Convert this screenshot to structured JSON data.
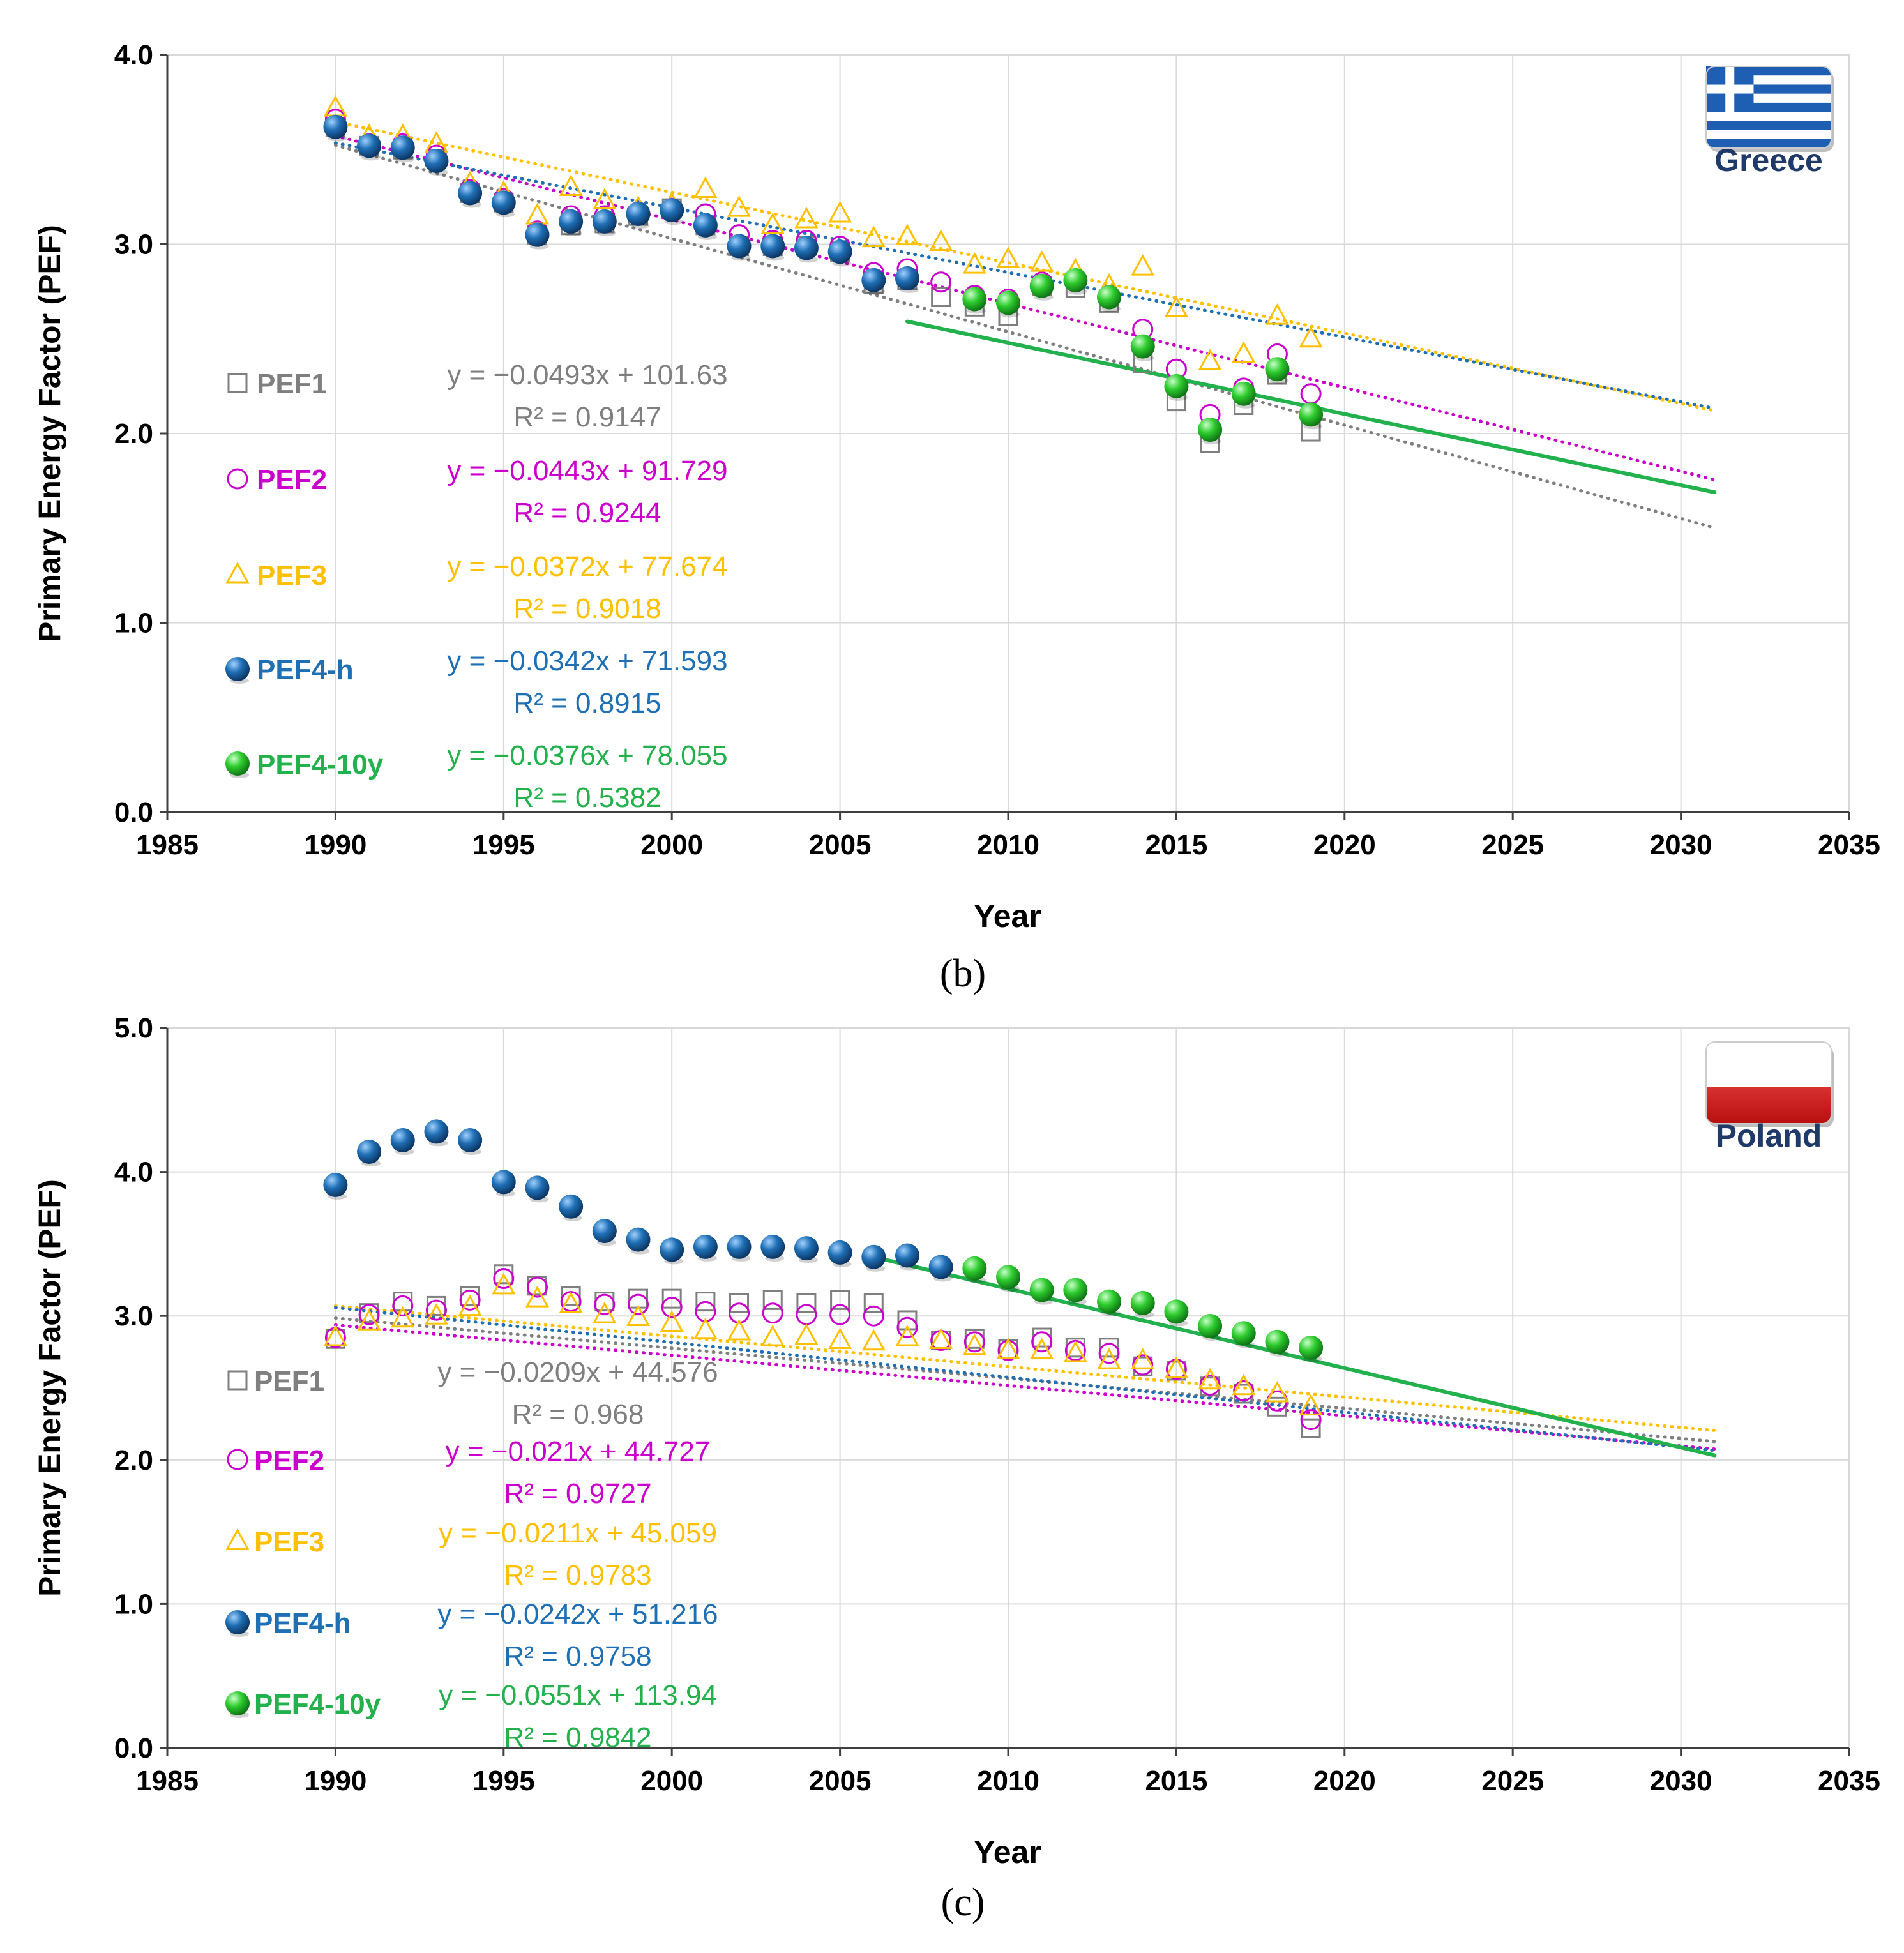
{
  "chart_data": [
    {
      "type": "scatter",
      "panel_caption": "(b)",
      "country": "Greece",
      "xlabel": "Year",
      "ylabel": "Primary Energy Factor (PEF)",
      "xlim": [
        1985,
        2035
      ],
      "ylim": [
        0,
        4
      ],
      "xticks": [
        "1985",
        "1990",
        "1995",
        "2000",
        "2005",
        "2010",
        "2015",
        "2020",
        "2025",
        "2030",
        "2035"
      ],
      "yticks": [
        "0.0",
        "1.0",
        "2.0",
        "3.0",
        "4.0"
      ],
      "series": [
        {
          "name": "PEF1",
          "marker": "square",
          "color": "#7f7f7f",
          "x": [
            1990,
            1991,
            1992,
            1993,
            1994,
            1995,
            1996,
            1997,
            1998,
            1999,
            2000,
            2001,
            2002,
            2003,
            2004,
            2005,
            2006,
            2007,
            2008,
            2009,
            2010,
            2011,
            2012,
            2013,
            2014,
            2015,
            2016,
            2017,
            2018,
            2019
          ],
          "values": [
            3.62,
            3.52,
            3.5,
            3.45,
            3.27,
            3.22,
            3.05,
            3.1,
            3.11,
            3.15,
            3.19,
            3.1,
            2.99,
            2.99,
            2.99,
            2.96,
            2.79,
            2.81,
            2.72,
            2.67,
            2.62,
            2.78,
            2.77,
            2.69,
            2.37,
            2.17,
            1.95,
            2.15,
            2.31,
            2.01
          ],
          "equation": "y = −0.0493x + 101.63",
          "r2": "R² = 0.9147",
          "slope": -0.0493,
          "intercept": 101.63
        },
        {
          "name": "PEF2",
          "marker": "circle",
          "color": "#cc00cc",
          "x": [
            1990,
            1991,
            1992,
            1993,
            1994,
            1995,
            1996,
            1997,
            1998,
            1999,
            2000,
            2001,
            2002,
            2003,
            2004,
            2005,
            2006,
            2007,
            2008,
            2009,
            2010,
            2011,
            2012,
            2013,
            2014,
            2015,
            2016,
            2017,
            2018,
            2019
          ],
          "values": [
            3.66,
            3.53,
            3.53,
            3.47,
            3.29,
            3.24,
            3.07,
            3.15,
            3.15,
            3.17,
            3.19,
            3.16,
            3.05,
            3.02,
            3.02,
            2.99,
            2.85,
            2.87,
            2.8,
            2.73,
            2.71,
            2.8,
            2.8,
            2.73,
            2.55,
            2.34,
            2.1,
            2.24,
            2.42,
            2.21
          ],
          "equation": "y = −0.0443x + 91.729",
          "r2": "R² = 0.9244",
          "slope": -0.0443,
          "intercept": 91.729
        },
        {
          "name": "PEF3",
          "marker": "triangle",
          "color": "#ffc000",
          "x": [
            1990,
            1991,
            1992,
            1993,
            1994,
            1995,
            1996,
            1997,
            1998,
            1999,
            2000,
            2001,
            2002,
            2003,
            2004,
            2005,
            2006,
            2007,
            2008,
            2009,
            2010,
            2011,
            2012,
            2013,
            2014,
            2015,
            2016,
            2017,
            2018,
            2019
          ],
          "values": [
            3.72,
            3.57,
            3.57,
            3.53,
            3.32,
            3.27,
            3.15,
            3.3,
            3.23,
            3.19,
            3.21,
            3.29,
            3.19,
            3.1,
            3.13,
            3.16,
            3.03,
            3.04,
            3.01,
            2.89,
            2.92,
            2.9,
            2.86,
            2.78,
            2.88,
            2.66,
            2.38,
            2.42,
            2.62,
            2.5
          ],
          "equation": "y = −0.0372x + 77.674",
          "r2": "R² = 0.9018",
          "slope": -0.0372,
          "intercept": 77.674
        },
        {
          "name": "PEF4-h",
          "marker": "ball",
          "color": "#1f6fb5",
          "x": [
            1990,
            1991,
            1992,
            1993,
            1994,
            1995,
            1996,
            1997,
            1998,
            1999,
            2000,
            2001,
            2002,
            2003,
            2004,
            2005,
            2006,
            2007
          ],
          "values": [
            3.62,
            3.52,
            3.51,
            3.44,
            3.27,
            3.22,
            3.05,
            3.12,
            3.12,
            3.16,
            3.18,
            3.1,
            2.99,
            2.99,
            2.98,
            2.96,
            2.81,
            2.82
          ],
          "equation": "y = −0.0342x + 71.593",
          "r2": "R² = 0.8915",
          "slope": -0.0342,
          "intercept": 71.593
        },
        {
          "name": "PEF4-10y",
          "marker": "ball",
          "color": "#22b14c",
          "x": [
            2009,
            2010,
            2011,
            2012,
            2013,
            2014,
            2015,
            2016,
            2017,
            2018,
            2019
          ],
          "values": [
            2.71,
            2.69,
            2.78,
            2.81,
            2.72,
            2.46,
            2.25,
            2.02,
            2.21,
            2.34,
            2.1
          ],
          "equation": "y = −0.0376x + 78.055",
          "r2": "R² = 0.5382",
          "slope": -0.0376,
          "intercept": 78.055,
          "fit_range": [
            2007,
            2031
          ]
        }
      ]
    },
    {
      "type": "scatter",
      "panel_caption": "(c)",
      "country": "Poland",
      "xlabel": "Year",
      "ylabel": "Primary Energy Factor (PEF)",
      "xlim": [
        1985,
        2035
      ],
      "ylim": [
        0,
        5
      ],
      "xticks": [
        "1985",
        "1990",
        "1995",
        "2000",
        "2005",
        "2010",
        "2015",
        "2020",
        "2025",
        "2030",
        "2035"
      ],
      "yticks": [
        "0.0",
        "1.0",
        "2.0",
        "3.0",
        "4.0",
        "5.0"
      ],
      "series": [
        {
          "name": "PEF1",
          "marker": "square",
          "color": "#7f7f7f",
          "x": [
            1990,
            1991,
            1992,
            1993,
            1994,
            1995,
            1996,
            1997,
            1998,
            1999,
            2000,
            2001,
            2002,
            2003,
            2004,
            2005,
            2006,
            2007,
            2008,
            2009,
            2010,
            2011,
            2012,
            2013,
            2014,
            2015,
            2016,
            2017,
            2018,
            2019
          ],
          "values": [
            2.84,
            3.02,
            3.1,
            3.07,
            3.14,
            3.29,
            3.21,
            3.14,
            3.1,
            3.12,
            3.12,
            3.1,
            3.09,
            3.11,
            3.09,
            3.11,
            3.09,
            2.97,
            2.83,
            2.84,
            2.77,
            2.85,
            2.78,
            2.78,
            2.65,
            2.62,
            2.51,
            2.46,
            2.37,
            2.22
          ],
          "equation": "y = −0.0209x + 44.576",
          "r2": "R² = 0.968",
          "slope": -0.0209,
          "intercept": 44.576
        },
        {
          "name": "PEF2",
          "marker": "circle",
          "color": "#cc00cc",
          "x": [
            1990,
            1991,
            1992,
            1993,
            1994,
            1995,
            1996,
            1997,
            1998,
            1999,
            2000,
            2001,
            2002,
            2003,
            2004,
            2005,
            2006,
            2007,
            2008,
            2009,
            2010,
            2011,
            2012,
            2013,
            2014,
            2015,
            2016,
            2017,
            2018,
            2019
          ],
          "values": [
            2.85,
            3.01,
            3.07,
            3.04,
            3.11,
            3.26,
            3.2,
            3.1,
            3.08,
            3.08,
            3.06,
            3.03,
            3.02,
            3.02,
            3.01,
            3.01,
            3.0,
            2.92,
            2.83,
            2.82,
            2.76,
            2.82,
            2.76,
            2.74,
            2.66,
            2.63,
            2.52,
            2.48,
            2.41,
            2.28
          ],
          "equation": "y = −0.021x + 44.727",
          "r2": "R² = 0.9727",
          "slope": -0.021,
          "intercept": 44.727
        },
        {
          "name": "PEF3",
          "marker": "triangle",
          "color": "#ffc000",
          "x": [
            1990,
            1991,
            1992,
            1993,
            1994,
            1995,
            1996,
            1997,
            1998,
            1999,
            2000,
            2001,
            2002,
            2003,
            2004,
            2005,
            2006,
            2007,
            2008,
            2009,
            2010,
            2011,
            2012,
            2013,
            2014,
            2015,
            2016,
            2017,
            2018,
            2019
          ],
          "values": [
            2.85,
            2.96,
            2.98,
            3.0,
            3.06,
            3.21,
            3.12,
            3.08,
            3.01,
            2.99,
            2.95,
            2.9,
            2.89,
            2.85,
            2.86,
            2.83,
            2.82,
            2.85,
            2.83,
            2.79,
            2.76,
            2.76,
            2.74,
            2.69,
            2.69,
            2.63,
            2.55,
            2.51,
            2.46,
            2.37
          ],
          "equation": "y = −0.0211x + 45.059",
          "r2": "R² = 0.9783",
          "slope": -0.0211,
          "intercept": 45.059
        },
        {
          "name": "PEF4-h",
          "marker": "ball",
          "color": "#1f6fb5",
          "x": [
            1990,
            1991,
            1992,
            1993,
            1994,
            1995,
            1996,
            1997,
            1998,
            1999,
            2000,
            2001,
            2002,
            2003,
            2004,
            2005,
            2006,
            2007,
            2008
          ],
          "values": [
            3.91,
            4.14,
            4.22,
            4.28,
            4.22,
            3.93,
            3.89,
            3.76,
            3.59,
            3.53,
            3.46,
            3.48,
            3.48,
            3.48,
            3.47,
            3.44,
            3.41,
            3.42,
            3.34
          ],
          "equation": "y = −0.0242x + 51.216",
          "r2": "R² = 0.9758",
          "slope": -0.0242,
          "intercept": 51.216
        },
        {
          "name": "PEF4-10y",
          "marker": "ball",
          "color": "#22b14c",
          "x": [
            2009,
            2010,
            2011,
            2012,
            2013,
            2014,
            2015,
            2016,
            2017,
            2018,
            2019
          ],
          "values": [
            3.33,
            3.27,
            3.18,
            3.18,
            3.1,
            3.09,
            3.03,
            2.93,
            2.88,
            2.82,
            2.78
          ],
          "equation": "y = −0.0551x + 113.94",
          "r2": "R² = 0.9842",
          "slope": -0.0551,
          "intercept": 113.94,
          "fit_range": [
            2006,
            2031
          ]
        }
      ]
    }
  ]
}
